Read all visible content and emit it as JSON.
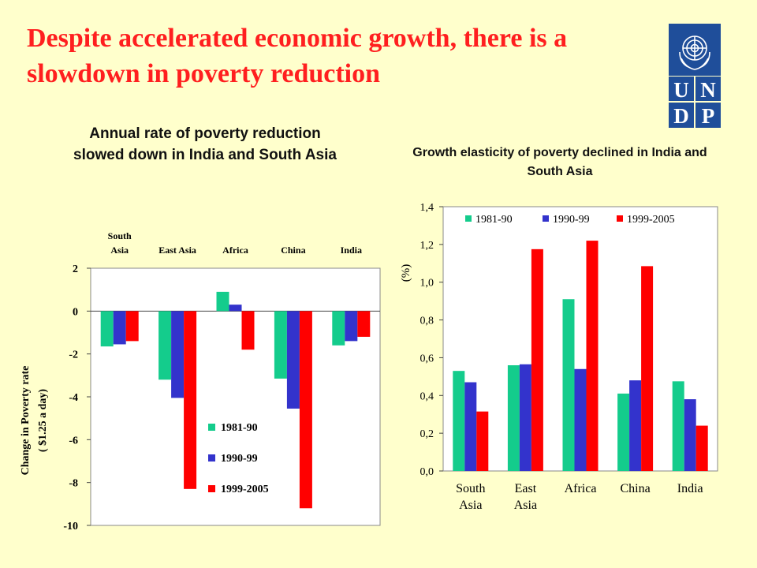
{
  "slide": {
    "title_line1": "Despite accelerated economic growth,  there is a",
    "title_line2": "slowdown in poverty reduction"
  },
  "logo": {
    "text": "UNDP",
    "letters": [
      "U",
      "N",
      "D",
      "P"
    ],
    "color": "#1f4e9a"
  },
  "chart_data": [
    {
      "type": "bar",
      "title": "Annual rate of poverty reduction slowed down in India and South Asia",
      "ylabel": [
        "Change in Poverty rate",
        "( $1.25 a day)"
      ],
      "xlabel": "",
      "categories": [
        [
          "South",
          "Asia"
        ],
        [
          "East Asia"
        ],
        [
          "Africa"
        ],
        [
          "China"
        ],
        [
          "India"
        ]
      ],
      "category_axis_position": "top",
      "series": [
        {
          "name": "1981-90",
          "color": "#14cc8c",
          "values": [
            -1.65,
            -3.2,
            0.9,
            -3.15,
            -1.6
          ]
        },
        {
          "name": "1990-99",
          "color": "#3333cc",
          "values": [
            -1.55,
            -4.05,
            0.3,
            -4.55,
            -1.4
          ]
        },
        {
          "name": "1999-2005",
          "color": "#ff0000",
          "values": [
            -1.4,
            -8.3,
            -1.8,
            -9.2,
            -1.2
          ]
        }
      ],
      "ylim": [
        -10,
        2
      ],
      "yticks": [
        "2",
        "0",
        "-2",
        "-4",
        "-6",
        "-8",
        "-10"
      ],
      "legend": "inside-bottom-right",
      "grid": false
    },
    {
      "type": "bar",
      "title": "Growth elasticity of poverty declined in India and South Asia",
      "ylabel": "(%)",
      "xlabel": "",
      "categories": [
        [
          "South",
          "Asia"
        ],
        [
          "East",
          "Asia"
        ],
        [
          "Africa"
        ],
        [
          "China"
        ],
        [
          "India"
        ]
      ],
      "series": [
        {
          "name": "1981-90",
          "color": "#14cc8c",
          "values": [
            0.53,
            0.56,
            0.91,
            0.41,
            0.475
          ]
        },
        {
          "name": "1990-99",
          "color": "#3333cc",
          "values": [
            0.47,
            0.565,
            0.54,
            0.48,
            0.38
          ]
        },
        {
          "name": "1999-2005",
          "color": "#ff0000",
          "values": [
            0.315,
            1.175,
            1.22,
            1.085,
            0.24
          ]
        }
      ],
      "ylim": [
        0,
        1.4
      ],
      "yticks": [
        "0,0",
        "0,2",
        "0,4",
        "0,6",
        "0,8",
        "1,0",
        "1,2",
        "1,4"
      ],
      "legend": "top",
      "grid": false
    }
  ]
}
